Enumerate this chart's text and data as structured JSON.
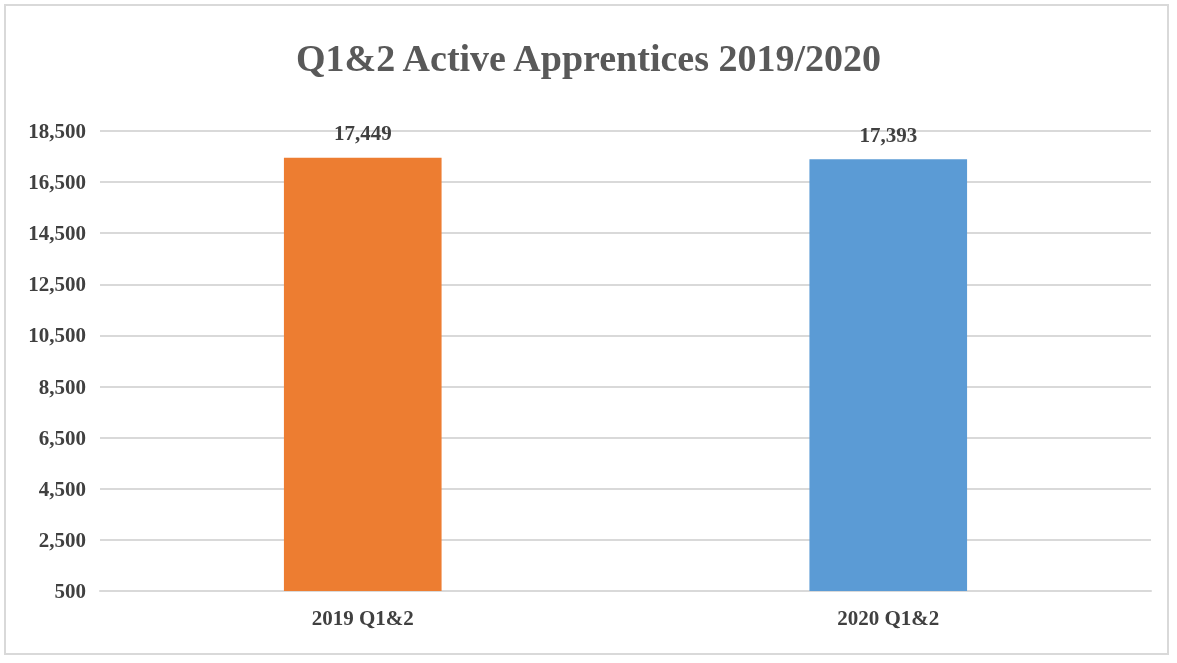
{
  "chart_data": {
    "type": "bar",
    "title": "Q1&2 Active Apprentices 2019/2020",
    "categories": [
      "2019 Q1&2",
      "2020 Q1&2"
    ],
    "values": [
      17449,
      17393
    ],
    "value_labels": [
      "17,449",
      "17,393"
    ],
    "colors": [
      "#ed7d31",
      "#5b9bd5"
    ],
    "ylim": [
      500,
      18500
    ],
    "yticks": [
      500,
      {
        "value": 2500,
        "label": "2,500"
      },
      {
        "value": 4500,
        "label": "4,500"
      },
      {
        "value": 6500,
        "label": "6,500"
      },
      {
        "value": 8500,
        "label": "8,500"
      },
      {
        "value": 10500,
        "label": "10,500"
      },
      {
        "value": 12500,
        "label": "12,500"
      },
      {
        "value": 14500,
        "label": "14,500"
      },
      {
        "value": 16500,
        "label": "16,500"
      },
      {
        "value": 18500,
        "label": "18,500"
      }
    ],
    "grid": "y"
  }
}
